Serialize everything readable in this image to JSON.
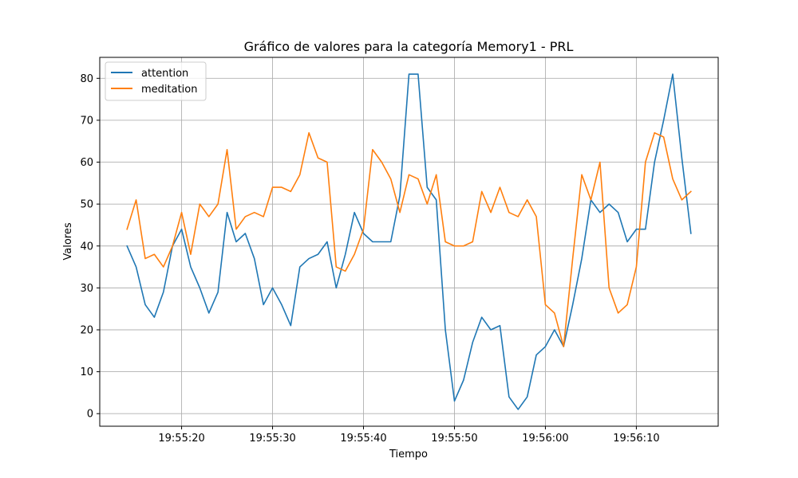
{
  "chart_data": {
    "type": "line",
    "title": "Gráfico de valores para la categoría Memory1 - PRL",
    "xlabel": "Tiempo",
    "ylabel": "Valores",
    "x_start": "19:55:14",
    "x_step_seconds": 1,
    "xticks": [
      "19:55:20",
      "19:55:30",
      "19:55:40",
      "19:55:50",
      "19:56:00",
      "19:56:10"
    ],
    "xlim": [
      "19:55:11",
      "19:56:19"
    ],
    "yticks": [
      0,
      10,
      20,
      30,
      40,
      50,
      60,
      70,
      80
    ],
    "ylim": [
      -3,
      85
    ],
    "grid": true,
    "legend_position": "upper-left",
    "series": [
      {
        "name": "attention",
        "color": "#1f77b4",
        "values": [
          40,
          35,
          26,
          23,
          29,
          40,
          44,
          35,
          30,
          24,
          29,
          48,
          41,
          43,
          37,
          26,
          30,
          26,
          21,
          35,
          37,
          38,
          41,
          30,
          38,
          48,
          43,
          41,
          41,
          41,
          52,
          81,
          81,
          54,
          51,
          20,
          3,
          8,
          17,
          23,
          20,
          21,
          4,
          1,
          4,
          14,
          16,
          20,
          16,
          26,
          37,
          51,
          48,
          50,
          48,
          41,
          44,
          44,
          60,
          70,
          81,
          61,
          43
        ]
      },
      {
        "name": "meditation",
        "color": "#ff7f0e",
        "values": [
          44,
          51,
          37,
          38,
          35,
          40,
          48,
          38,
          50,
          47,
          50,
          63,
          44,
          47,
          48,
          47,
          54,
          54,
          53,
          57,
          67,
          61,
          60,
          35,
          34,
          38,
          44,
          63,
          60,
          56,
          48,
          57,
          56,
          50,
          57,
          41,
          40,
          40,
          41,
          53,
          48,
          54,
          48,
          47,
          51,
          47,
          26,
          24,
          16,
          37,
          57,
          51,
          60,
          30,
          24,
          26,
          35,
          60,
          67,
          66,
          56,
          51,
          53
        ]
      }
    ]
  }
}
